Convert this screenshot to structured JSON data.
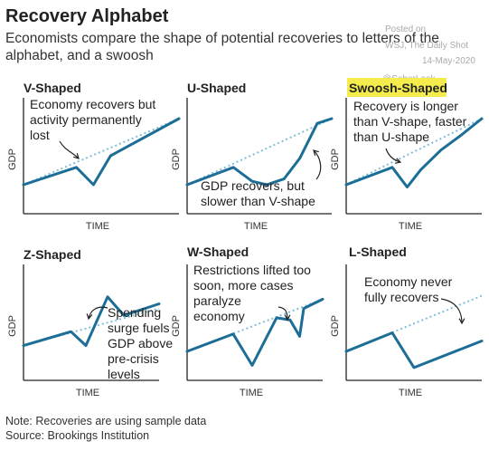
{
  "header": {
    "title": "Recovery Alphabet",
    "subtitle": "Economists compare the shape of potential recoveries to letters of the alphabet, and a swoosh"
  },
  "watermark": {
    "posted_on": "Posted on",
    "source": "WSJ, The Daily Shot",
    "date": "14-May-2020",
    "handle": "@SoberLook"
  },
  "footer": {
    "note": "Note: Recoveries are using sample data",
    "source": "Source: Brookings Institution"
  },
  "colors": {
    "line": "#1c6e96",
    "dotted": "#7fbfd6",
    "axis": "#222222",
    "highlight": "#f4ec4c"
  },
  "chart_data": [
    {
      "type": "line",
      "title": "V-Shaped",
      "xlabel": "TIME",
      "ylabel": "GDP",
      "highlight": false,
      "trend": [
        [
          0,
          2.5
        ],
        [
          10,
          8.2
        ]
      ],
      "series": [
        {
          "values": [
            [
              0,
              2.5
            ],
            [
              3.4,
              4.0
            ],
            [
              4.5,
              2.5
            ],
            [
              5.6,
              5.0
            ],
            [
              10,
              8.2
            ]
          ]
        }
      ],
      "annotation": {
        "lines": [
          "Economy recovers but",
          "activity permanently",
          "lost"
        ]
      }
    },
    {
      "type": "line",
      "title": "U-Shaped",
      "xlabel": "TIME",
      "ylabel": "GDP",
      "highlight": false,
      "trend": [
        [
          0,
          2.5
        ],
        [
          10,
          8.2
        ]
      ],
      "series": [
        {
          "values": [
            [
              0,
              2.5
            ],
            [
              3.2,
              4.0
            ],
            [
              4.5,
              2.8
            ],
            [
              5.5,
              2.5
            ],
            [
              6.7,
              3.0
            ],
            [
              7.8,
              4.8
            ],
            [
              9.0,
              7.8
            ],
            [
              10,
              8.2
            ]
          ]
        }
      ],
      "annotation": {
        "lines": [
          "GDP recovers, but",
          "slower than V-shape"
        ]
      }
    },
    {
      "type": "line",
      "title": "Swoosh-Shaped",
      "xlabel": "TIME",
      "ylabel": "GDP",
      "highlight": true,
      "trend": [
        [
          0,
          2.5
        ],
        [
          10,
          8.2
        ]
      ],
      "series": [
        {
          "values": [
            [
              0,
              2.5
            ],
            [
              3.4,
              4.0
            ],
            [
              4.5,
              2.3
            ],
            [
              5.5,
              3.8
            ],
            [
              7,
              5.5
            ],
            [
              8.5,
              6.8
            ],
            [
              10,
              8.2
            ]
          ]
        }
      ],
      "annotation": {
        "lines": [
          "Recovery is longer",
          "than V-shape, faster",
          "than U-shape"
        ]
      }
    },
    {
      "type": "line",
      "title": "Z-Shaped",
      "xlabel": "TIME",
      "ylabel": "GDP",
      "highlight": false,
      "trend": [
        [
          0,
          3.0
        ],
        [
          10,
          6.2
        ]
      ],
      "series": [
        {
          "values": [
            [
              0,
              3.0
            ],
            [
              3.5,
              4.2
            ],
            [
              4.6,
              3.0
            ],
            [
              6.2,
              7.2
            ],
            [
              7.4,
              5.6
            ],
            [
              10,
              6.6
            ]
          ]
        }
      ],
      "annotation": {
        "lines": [
          "Spending",
          "surge fuels",
          "GDP above",
          "pre-crisis",
          "levels"
        ]
      }
    },
    {
      "type": "line",
      "title": "W-Shaped",
      "xlabel": "TIME",
      "ylabel": "GDP",
      "highlight": false,
      "trend": [
        [
          0,
          2.5
        ],
        [
          10,
          7.0
        ]
      ],
      "series": [
        {
          "values": [
            [
              0,
              2.5
            ],
            [
              3.4,
              4.0
            ],
            [
              4.8,
              1.3
            ],
            [
              6.6,
              5.4
            ],
            [
              7.6,
              5.2
            ],
            [
              8.3,
              3.8
            ],
            [
              8.6,
              6.2
            ],
            [
              10,
              7.0
            ]
          ]
        }
      ],
      "annotation": {
        "lines": [
          "Restrictions lifted too",
          "soon, more cases",
          "paralyze",
          "economy"
        ]
      }
    },
    {
      "type": "line",
      "title": "L-Shaped",
      "xlabel": "TIME",
      "ylabel": "GDP",
      "highlight": false,
      "trend": [
        [
          0,
          2.5
        ],
        [
          10,
          7.3
        ]
      ],
      "series": [
        {
          "values": [
            [
              0,
              2.5
            ],
            [
              3.4,
              4.1
            ],
            [
              5.0,
              1.1
            ],
            [
              10,
              3.4
            ]
          ]
        }
      ],
      "annotation": {
        "lines": [
          "Economy never",
          "fully recovers"
        ]
      }
    }
  ]
}
